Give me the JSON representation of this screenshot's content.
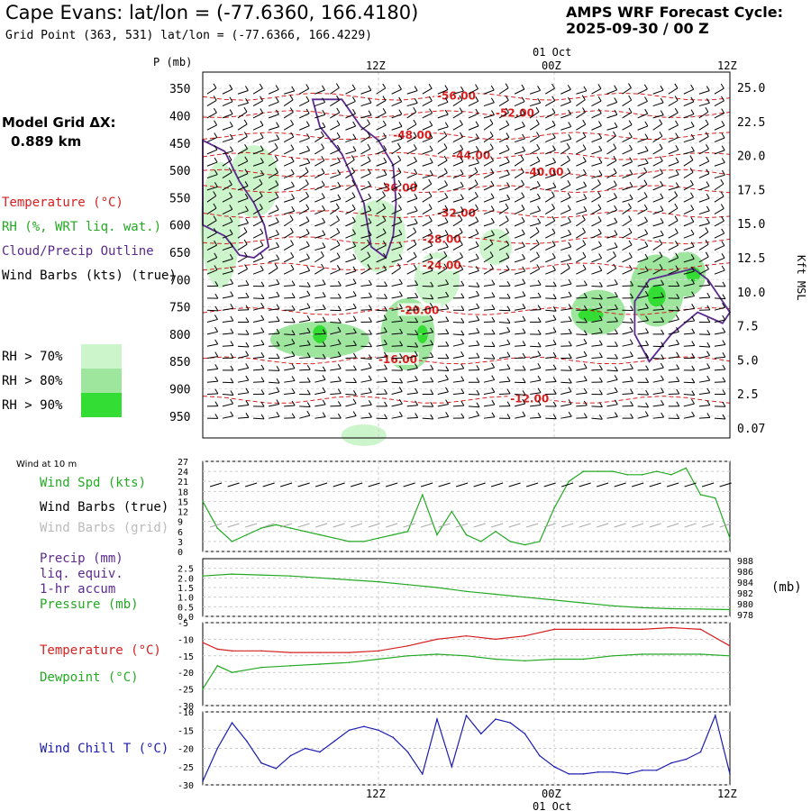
{
  "header": {
    "title": "Cape Evans:  lat/lon = (-77.6360, 166.4180)",
    "grid_point": "Grid Point (363, 531) lat/lon = (-77.6366, 166.4229)",
    "cycle_label": "AMPS WRF Forecast Cycle:",
    "cycle_value": "2025-09-30 / 00  Z",
    "model_grid_label": "Model Grid ΔX:",
    "model_grid_value": "0.889 km"
  },
  "time_axis": {
    "top_date": "01 Oct",
    "bottom_date": "01 Oct",
    "ticks": [
      "12Z",
      "00Z",
      "12Z"
    ],
    "x_range_hours": [
      0,
      36
    ]
  },
  "colors": {
    "temperature": "#d62020",
    "rh": "#22aa22",
    "cloud": "#5b2a8c",
    "wind": "#000000",
    "grid_barb": "#aaaaaa",
    "pressure": "#22aa22",
    "wind_chill": "#1c1cb0",
    "rh70": "#ccf5cc",
    "rh80": "#9ee69e",
    "rh90": "#33dd33"
  },
  "legend_top": {
    "temperature": "Temperature (°C)",
    "rh": "RH (%, WRT liq. wat.)",
    "cloud": "Cloud/Precip Outline",
    "wind": "Wind Barbs (kts) (true)",
    "rh70": "RH > 70%",
    "rh80": "RH > 80%",
    "rh90": "RH > 90%"
  },
  "legend_wind": {
    "title": "Wind at 10 m",
    "spd": "Wind Spd (kts)",
    "barbs_true": "Wind Barbs (true)",
    "barbs_grid": "Wind Barbs (grid)"
  },
  "legend_precip": {
    "l1": "Precip (mm)",
    "l2": "liq. equiv.",
    "l3": "1-hr accum",
    "l4": "Pressure (mb)",
    "right_unit": "(mb)"
  },
  "legend_temp": {
    "temp": "Temperature (°C)",
    "dew": "Dewpoint (°C)"
  },
  "legend_chill": {
    "chill": "Wind Chill T (°C)"
  },
  "chart_data": [
    {
      "type": "heatmap",
      "panel": "cross-section",
      "ylabel": "P (mb)",
      "y2label": "Kft MSL",
      "pressure_ticks": [
        "350",
        "400",
        "450",
        "500",
        "550",
        "600",
        "650",
        "700",
        "750",
        "800",
        "850",
        "900",
        "950"
      ],
      "height_ticks": [
        "25.0",
        "22.5",
        "20.0",
        "17.5",
        "15.0",
        "12.5",
        "10.0",
        "7.5",
        "5.0",
        "2.5",
        "0.07"
      ],
      "temperature_contours": [
        {
          "label": "-56.00",
          "hour": 16.0,
          "p": 365
        },
        {
          "label": "-52.00",
          "hour": 20.0,
          "p": 397
        },
        {
          "label": "-48.00",
          "hour": 13.0,
          "p": 437
        },
        {
          "label": "-44.00",
          "hour": 17.0,
          "p": 474
        },
        {
          "label": "-40.00",
          "hour": 22.0,
          "p": 505
        },
        {
          "label": "-36.00",
          "hour": 12.0,
          "p": 534
        },
        {
          "label": "-32.00",
          "hour": 16.0,
          "p": 580
        },
        {
          "label": "-28.00",
          "hour": 15.0,
          "p": 628
        },
        {
          "label": "-24.00",
          "hour": 15.0,
          "p": 676
        },
        {
          "label": "-20.00",
          "hour": 13.5,
          "p": 758
        },
        {
          "label": "-16.00",
          "hour": 12.0,
          "p": 848
        },
        {
          "label": "-12.00",
          "hour": 21.0,
          "p": 920
        }
      ]
    },
    {
      "type": "line",
      "panel": "wind",
      "ylim": [
        0,
        27
      ],
      "yticks": [
        "0",
        "3",
        "6",
        "9",
        "12",
        "15",
        "18",
        "21",
        "24",
        "27"
      ],
      "series": [
        {
          "name": "Wind Spd (kts)",
          "x": [
            0,
            1,
            2,
            3,
            4,
            5,
            6,
            7,
            8,
            9,
            10,
            11,
            12,
            13,
            14,
            15,
            16,
            17,
            18,
            19,
            20,
            21,
            22,
            23,
            24,
            25,
            26,
            27,
            28,
            29,
            30,
            31,
            32,
            33,
            34,
            35,
            36
          ],
          "values": [
            15,
            7,
            3,
            5,
            7,
            8,
            7,
            6,
            5,
            4,
            3,
            3,
            4,
            5,
            6,
            17,
            5,
            12,
            5,
            3,
            6,
            3,
            2,
            3,
            13,
            21,
            24,
            24,
            24,
            23,
            23,
            24,
            23,
            25,
            17,
            16,
            4
          ]
        }
      ]
    },
    {
      "type": "line",
      "panel": "precip-pressure",
      "ylim": [
        0,
        3.0
      ],
      "yticks": [
        "0.0",
        "0.5",
        "1.0",
        "1.5",
        "2.0",
        "2.5"
      ],
      "y2ticks": [
        "978",
        "980",
        "982",
        "984",
        "986",
        "988"
      ],
      "series": [
        {
          "name": "Pressure (mb)",
          "x": [
            0,
            2,
            4,
            6,
            8,
            10,
            12,
            14,
            16,
            18,
            20,
            22,
            24,
            26,
            28,
            30,
            32,
            34,
            36
          ],
          "values": [
            2.1,
            2.2,
            2.15,
            2.1,
            2.0,
            1.9,
            1.8,
            1.65,
            1.5,
            1.3,
            1.15,
            1.0,
            0.85,
            0.7,
            0.55,
            0.45,
            0.4,
            0.38,
            0.35
          ]
        }
      ]
    },
    {
      "type": "line",
      "panel": "temperature",
      "ylim": [
        -30,
        -5
      ],
      "yticks": [
        "-5",
        "-10",
        "-15",
        "-20",
        "-25",
        "-30"
      ],
      "series": [
        {
          "name": "Temperature (°C)",
          "x": [
            0,
            1,
            2,
            4,
            6,
            8,
            10,
            12,
            14,
            16,
            18,
            20,
            22,
            24,
            26,
            28,
            30,
            32,
            34,
            36
          ],
          "values": [
            -11,
            -13,
            -13.5,
            -13.5,
            -14,
            -14,
            -14,
            -13.5,
            -12,
            -10,
            -9,
            -10,
            -9,
            -7,
            -7,
            -7,
            -7,
            -6.5,
            -7,
            -12
          ]
        },
        {
          "name": "Dewpoint (°C)",
          "x": [
            0,
            1,
            2,
            4,
            6,
            8,
            10,
            12,
            14,
            16,
            18,
            20,
            22,
            24,
            26,
            28,
            30,
            32,
            34,
            36
          ],
          "values": [
            -25,
            -18,
            -20,
            -18.5,
            -18,
            -17.5,
            -17,
            -16,
            -15,
            -14.5,
            -15,
            -16,
            -16.5,
            -16,
            -16,
            -15,
            -14.5,
            -14.5,
            -14.5,
            -15
          ]
        }
      ]
    },
    {
      "type": "line",
      "panel": "wind-chill",
      "ylim": [
        -30,
        -10
      ],
      "yticks": [
        "-10",
        "-15",
        "-20",
        "-25",
        "-30"
      ],
      "series": [
        {
          "name": "Wind Chill T (°C)",
          "x": [
            0,
            1,
            2,
            3,
            4,
            5,
            6,
            7,
            8,
            9,
            10,
            11,
            12,
            13,
            14,
            15,
            16,
            17,
            18,
            19,
            20,
            21,
            22,
            23,
            24,
            25,
            26,
            27,
            28,
            29,
            30,
            31,
            32,
            33,
            34,
            35,
            36
          ],
          "values": [
            -29,
            -20,
            -13,
            -18,
            -24,
            -25.5,
            -22,
            -20,
            -21,
            -18,
            -15,
            -14,
            -15,
            -17,
            -21,
            -27,
            -12,
            -25,
            -11,
            -16,
            -12,
            -13,
            -16,
            -22,
            -25,
            -27,
            -27,
            -26.5,
            -26.5,
            -27,
            -26,
            -26,
            -24,
            -23,
            -21,
            -11,
            -27
          ]
        }
      ]
    }
  ]
}
